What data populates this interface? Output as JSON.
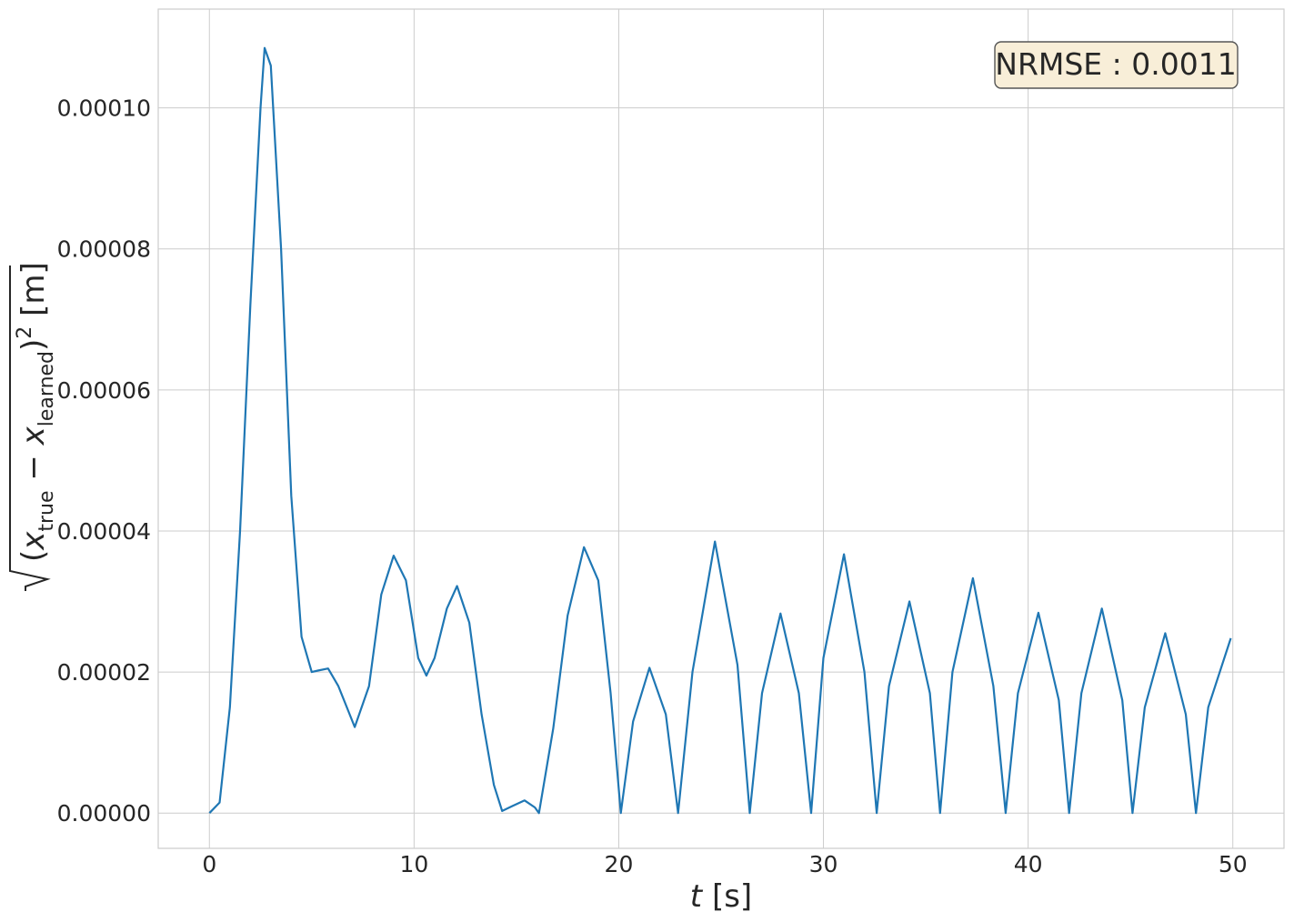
{
  "chart_data": {
    "type": "line",
    "xlabel": "t [s]",
    "ylabel": "√(x_true − x_learned)² [m]",
    "xlim": [
      -2.5,
      52.5
    ],
    "ylim": [
      -5e-06,
      0.000114
    ],
    "x_ticks": [
      0,
      10,
      20,
      30,
      40,
      50
    ],
    "x_tick_labels": [
      "0",
      "10",
      "20",
      "30",
      "40",
      "50"
    ],
    "y_ticks": [
      0,
      2e-05,
      4e-05,
      6e-05,
      8e-05,
      0.0001
    ],
    "y_tick_labels": [
      "0.00000",
      "0.00002",
      "0.00004",
      "0.00006",
      "0.00008",
      "0.00010"
    ],
    "grid": true,
    "annotation": {
      "text": "NRMSE : 0.0011",
      "position": "top-right"
    },
    "colors": {
      "line": "#1f77b4",
      "grid": "#cccccc",
      "annot_fill": "#f8eed8",
      "annot_edge": "#555555"
    },
    "series": [
      {
        "x": [
          0,
          0.5,
          1,
          1.5,
          2,
          2.5,
          2.7,
          3,
          3.5,
          4,
          4.5,
          5,
          5.3,
          5.8,
          6.3,
          7.1,
          7.8,
          8.4,
          9.0,
          9.6,
          10.2,
          10.6,
          11.0,
          11.6,
          12.1,
          12.7,
          13.3,
          13.9,
          14.3,
          14.8,
          15.4,
          15.9,
          16.1,
          16.8,
          17.5,
          18.3,
          19.0,
          19.6,
          20.1,
          20.7,
          21.5,
          22.3,
          22.9,
          23.6,
          24.7,
          25.8,
          26.4,
          27.0,
          27.9,
          28.8,
          29.4,
          30.0,
          31.0,
          32.0,
          32.6,
          33.2,
          34.2,
          35.2,
          35.7,
          36.3,
          37.3,
          38.3,
          38.9,
          39.5,
          40.5,
          41.5,
          42.0,
          42.6,
          43.6,
          44.6,
          45.1,
          45.7,
          46.7,
          47.7,
          48.2,
          48.8,
          49.9
        ],
        "y": [
          0,
          1.5e-06,
          1.5e-05,
          4e-05,
          7.2e-05,
          0.0001,
          0.0001085,
          0.000106,
          8e-05,
          4.5e-05,
          2.5e-05,
          2e-05,
          2.02e-05,
          2.05e-05,
          1.8e-05,
          1.22e-05,
          1.8e-05,
          3.1e-05,
          3.65e-05,
          3.3e-05,
          2.2e-05,
          1.95e-05,
          2.2e-05,
          2.9e-05,
          3.22e-05,
          2.7e-05,
          1.4e-05,
          4e-06,
          3e-07,
          1e-06,
          1.8e-06,
          8e-07,
          0,
          1.2e-05,
          2.8e-05,
          3.77e-05,
          3.3e-05,
          1.7e-05,
          0,
          1.3e-05,
          2.06e-05,
          1.4e-05,
          0,
          2e-05,
          3.85e-05,
          2.1e-05,
          0,
          1.7e-05,
          2.83e-05,
          1.7e-05,
          0,
          2.2e-05,
          3.67e-05,
          2e-05,
          0,
          1.8e-05,
          3e-05,
          1.7e-05,
          0,
          2e-05,
          3.33e-05,
          1.8e-05,
          0,
          1.7e-05,
          2.84e-05,
          1.6e-05,
          0,
          1.7e-05,
          2.9e-05,
          1.6e-05,
          0,
          1.5e-05,
          2.55e-05,
          1.4e-05,
          0,
          1.5e-05,
          2.48e-05
        ]
      }
    ]
  }
}
